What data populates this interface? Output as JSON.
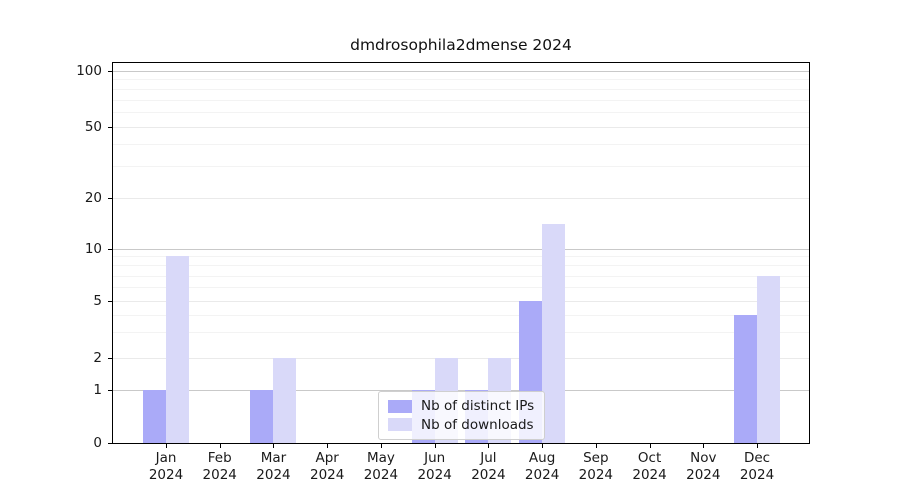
{
  "title": "dmdrosophila2dmense 2024",
  "chart_data": {
    "type": "bar",
    "title": "dmdrosophila2dmense 2024",
    "categories": [
      "Jan",
      "Feb",
      "Mar",
      "Apr",
      "May",
      "Jun",
      "Jul",
      "Aug",
      "Sep",
      "Oct",
      "Nov",
      "Dec"
    ],
    "year": "2024",
    "series": [
      {
        "name": "Nb of distinct IPs",
        "color": "#aaaaf8",
        "values": [
          1,
          0,
          1,
          0,
          0,
          1,
          1,
          5,
          0,
          0,
          0,
          4
        ]
      },
      {
        "name": "Nb of downloads",
        "color": "#d9d9f9",
        "values": [
          9,
          0,
          2,
          0,
          0,
          2,
          2,
          14,
          0,
          0,
          0,
          7
        ]
      }
    ],
    "yticks": [
      0,
      1,
      2,
      5,
      10,
      20,
      50,
      100
    ],
    "yscale": "linear below 1, logarithmic above 1",
    "ylim": [
      0,
      112
    ],
    "xlabel": "",
    "ylabel": "",
    "grid": true,
    "legend_position": "lower center inside plot"
  }
}
